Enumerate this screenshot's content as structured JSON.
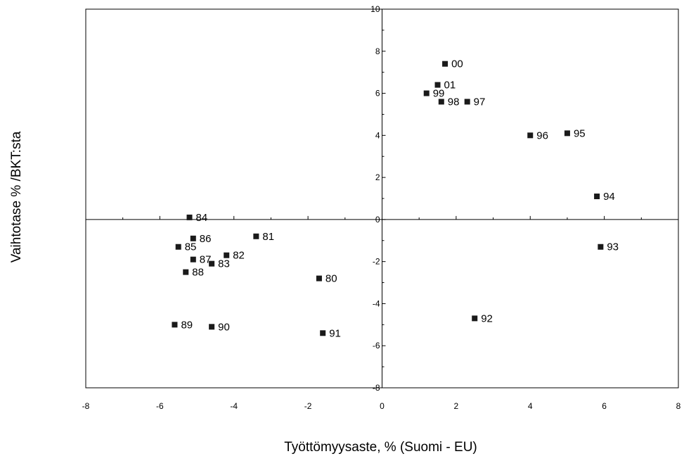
{
  "chart_data": {
    "type": "scatter",
    "xlabel": "Työttömyysaste, % (Suomi - EU)",
    "ylabel": "Vaihtotase % /BKT:sta",
    "xlim": [
      -8,
      8
    ],
    "ylim": [
      -8,
      10
    ],
    "x_ticks": [
      -8,
      -6,
      -4,
      -2,
      0,
      2,
      4,
      6,
      8
    ],
    "y_ticks": [
      -8,
      -6,
      -4,
      -2,
      0,
      2,
      4,
      6,
      8,
      10
    ],
    "x_tick_labels": [
      "-8",
      "-6",
      "-4",
      "-2",
      "0",
      "2",
      "4",
      "6",
      "8"
    ],
    "y_tick_labels": [
      "-8",
      "-6",
      "-4",
      "-2",
      "0",
      "2",
      "4",
      "6",
      "8",
      "10"
    ],
    "grid": false,
    "legend": "none",
    "marker": "square",
    "marker_color": "#1a1a1a",
    "points": [
      {
        "label": "80",
        "x": -1.7,
        "y": -2.8
      },
      {
        "label": "81",
        "x": -3.4,
        "y": -0.8
      },
      {
        "label": "82",
        "x": -4.2,
        "y": -1.7
      },
      {
        "label": "83",
        "x": -4.6,
        "y": -2.1
      },
      {
        "label": "84",
        "x": -5.2,
        "y": 0.1
      },
      {
        "label": "85",
        "x": -5.5,
        "y": -1.3
      },
      {
        "label": "86",
        "x": -5.1,
        "y": -0.9
      },
      {
        "label": "87",
        "x": -5.1,
        "y": -1.9
      },
      {
        "label": "88",
        "x": -5.3,
        "y": -2.5
      },
      {
        "label": "89",
        "x": -5.6,
        "y": -5.0
      },
      {
        "label": "90",
        "x": -4.6,
        "y": -5.1
      },
      {
        "label": "91",
        "x": -1.6,
        "y": -5.4
      },
      {
        "label": "92",
        "x": 2.5,
        "y": -4.7
      },
      {
        "label": "93",
        "x": 5.9,
        "y": -1.3
      },
      {
        "label": "94",
        "x": 5.8,
        "y": 1.1
      },
      {
        "label": "95",
        "x": 5.0,
        "y": 4.1
      },
      {
        "label": "96",
        "x": 4.0,
        "y": 4.0
      },
      {
        "label": "97",
        "x": 2.3,
        "y": 5.6
      },
      {
        "label": "98",
        "x": 1.6,
        "y": 5.6
      },
      {
        "label": "99",
        "x": 1.2,
        "y": 6.0
      },
      {
        "label": "00",
        "x": 1.7,
        "y": 7.4
      },
      {
        "label": "01",
        "x": 1.5,
        "y": 6.4
      }
    ]
  }
}
